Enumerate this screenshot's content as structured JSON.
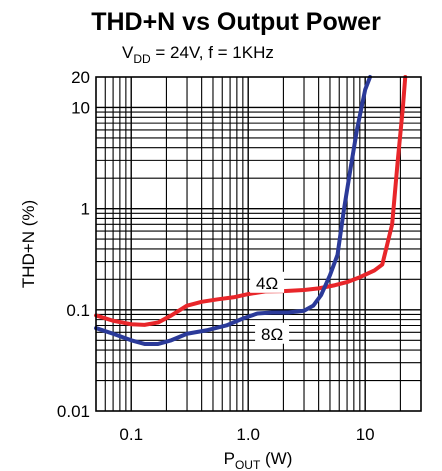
{
  "chart_data": {
    "type": "line",
    "title": "THD+N vs Output Power",
    "subtitle": {
      "vdd_prefix": "V",
      "vdd_sub": "DD",
      "vdd_rest": " = 24V, f = 1KHz"
    },
    "xlabel": {
      "main": "P",
      "sub": "OUT",
      "unit": " (W)"
    },
    "ylabel": "THD+N (%)",
    "xscale": "log",
    "yscale": "log",
    "xlim": [
      0.05,
      30
    ],
    "ylim": [
      0.01,
      20
    ],
    "grid": true,
    "x_ticks": [
      {
        "value": 0.1,
        "label": "0.1"
      },
      {
        "value": 1,
        "label": "1.0"
      },
      {
        "value": 10,
        "label": "10"
      }
    ],
    "y_ticks": [
      {
        "value": 0.01,
        "label": "0.01"
      },
      {
        "value": 0.1,
        "label": "0.1"
      },
      {
        "value": 1,
        "label": "1"
      },
      {
        "value": 10,
        "label": "10"
      },
      {
        "value": 20,
        "label": "20"
      }
    ],
    "series": [
      {
        "name": "4Ω",
        "color": "#e8262a",
        "label_at": {
          "x": 1.45,
          "y": 0.185
        },
        "points": [
          [
            0.05,
            0.088
          ],
          [
            0.07,
            0.078
          ],
          [
            0.1,
            0.072
          ],
          [
            0.13,
            0.071
          ],
          [
            0.17,
            0.075
          ],
          [
            0.22,
            0.088
          ],
          [
            0.3,
            0.11
          ],
          [
            0.4,
            0.12
          ],
          [
            0.55,
            0.127
          ],
          [
            0.75,
            0.133
          ],
          [
            1.0,
            0.143
          ],
          [
            1.4,
            0.152
          ],
          [
            2.0,
            0.153
          ],
          [
            3.0,
            0.157
          ],
          [
            4.0,
            0.163
          ],
          [
            5.5,
            0.175
          ],
          [
            7.0,
            0.188
          ],
          [
            9.0,
            0.21
          ],
          [
            12.0,
            0.245
          ],
          [
            14.0,
            0.28
          ],
          [
            17.0,
            0.7
          ],
          [
            19.0,
            3.0
          ],
          [
            21.0,
            10.0
          ],
          [
            22.0,
            20.0
          ]
        ]
      },
      {
        "name": "8Ω",
        "color": "#2b3a99",
        "label_at": {
          "x": 1.6,
          "y": 0.058
        },
        "points": [
          [
            0.05,
            0.066
          ],
          [
            0.07,
            0.058
          ],
          [
            0.1,
            0.05
          ],
          [
            0.13,
            0.046
          ],
          [
            0.17,
            0.046
          ],
          [
            0.22,
            0.05
          ],
          [
            0.3,
            0.058
          ],
          [
            0.45,
            0.063
          ],
          [
            0.65,
            0.07
          ],
          [
            0.9,
            0.082
          ],
          [
            1.2,
            0.092
          ],
          [
            1.6,
            0.094
          ],
          [
            2.2,
            0.094
          ],
          [
            3.0,
            0.098
          ],
          [
            3.6,
            0.11
          ],
          [
            4.2,
            0.14
          ],
          [
            5.0,
            0.22
          ],
          [
            5.8,
            0.35
          ],
          [
            6.6,
            1.0
          ],
          [
            7.5,
            2.5
          ],
          [
            8.5,
            6.0
          ],
          [
            10.0,
            15.0
          ],
          [
            11.0,
            20.0
          ]
        ]
      }
    ]
  }
}
